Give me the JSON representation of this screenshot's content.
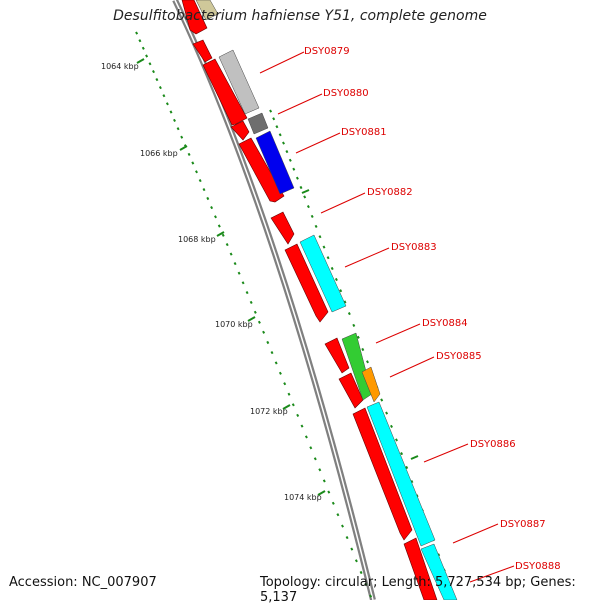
{
  "title": "Desulfitobacterium hafniense Y51, complete genome",
  "footer": {
    "accession": "Accession: NC_007907",
    "summary": "Topology: circular; Length: 5,727,534 bp; Genes: 5,137"
  },
  "colors": {
    "backbone": "#808080",
    "tick": "#1a8a1a",
    "label": "#dd0000",
    "gene_red": "#ff0000",
    "gene_gray": "#c0c0c0",
    "gene_dark": "#6e6e6e",
    "gene_blue": "#0000ee",
    "gene_cyan": "#00ffff",
    "gene_green": "#33cc33",
    "gene_orange": "#ff9900",
    "gene_olive": "#cfc89a"
  },
  "axis_labels": [
    "1064 kbp",
    "1066 kbp",
    "1068 kbp",
    "1070 kbp",
    "1072 kbp",
    "1074 kbp"
  ],
  "gene_labels": [
    "DSY0879",
    "DSY0880",
    "DSY0881",
    "DSY0882",
    "DSY0883",
    "DSY0884",
    "DSY0885",
    "DSY0886",
    "DSY0887",
    "DSY0888"
  ]
}
